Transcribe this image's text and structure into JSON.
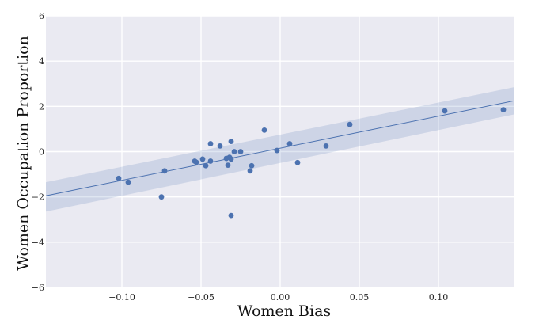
{
  "chart_data": {
    "type": "scatter",
    "title": "",
    "xlabel": "Women Bias",
    "ylabel": "Women Occupation Proportion",
    "xlim": [
      -0.148,
      0.148
    ],
    "ylim": [
      -6,
      6
    ],
    "x_ticks": [
      -0.1,
      -0.05,
      0.0,
      0.05,
      0.1
    ],
    "x_tick_labels": [
      "−0.10",
      "−0.05",
      "0.00",
      "0.05",
      "0.10"
    ],
    "y_ticks": [
      -6,
      -4,
      -2,
      0,
      2,
      4,
      6
    ],
    "y_tick_labels": [
      "−6",
      "−4",
      "−2",
      "0",
      "2",
      "4",
      "6"
    ],
    "grid": true,
    "legend": "none",
    "colors": {
      "background": "#eaeaf2",
      "grid": "#ffffff",
      "points": "#4c72b0",
      "fit_line": "#4c72b0",
      "confidence_band": "#4c72b0"
    },
    "points": [
      {
        "x": -0.102,
        "y": -1.18
      },
      {
        "x": -0.096,
        "y": -1.35
      },
      {
        "x": -0.075,
        "y": -2.0
      },
      {
        "x": -0.073,
        "y": -0.85
      },
      {
        "x": -0.054,
        "y": -0.42
      },
      {
        "x": -0.053,
        "y": -0.47
      },
      {
        "x": -0.049,
        "y": -0.33
      },
      {
        "x": -0.047,
        "y": -0.62
      },
      {
        "x": -0.044,
        "y": 0.35
      },
      {
        "x": -0.044,
        "y": -0.42
      },
      {
        "x": -0.038,
        "y": 0.25
      },
      {
        "x": -0.034,
        "y": -0.3
      },
      {
        "x": -0.033,
        "y": -0.6
      },
      {
        "x": -0.032,
        "y": -0.25
      },
      {
        "x": -0.031,
        "y": 0.45
      },
      {
        "x": -0.031,
        "y": -0.33
      },
      {
        "x": -0.031,
        "y": -2.82
      },
      {
        "x": -0.029,
        "y": 0.0
      },
      {
        "x": -0.025,
        "y": 0.0
      },
      {
        "x": -0.019,
        "y": -0.85
      },
      {
        "x": -0.018,
        "y": -0.62
      },
      {
        "x": -0.01,
        "y": 0.95
      },
      {
        "x": -0.002,
        "y": 0.05
      },
      {
        "x": 0.006,
        "y": 0.35
      },
      {
        "x": 0.011,
        "y": -0.48
      },
      {
        "x": 0.029,
        "y": 0.25
      },
      {
        "x": 0.044,
        "y": 1.2
      },
      {
        "x": 0.104,
        "y": 1.8
      },
      {
        "x": 0.141,
        "y": 1.85
      }
    ],
    "regression": {
      "x": [
        -0.148,
        0.148
      ],
      "y": [
        -1.95,
        2.25
      ],
      "ci_lower": [
        -2.65,
        1.65
      ],
      "ci_upper": [
        -1.35,
        2.85
      ]
    }
  }
}
